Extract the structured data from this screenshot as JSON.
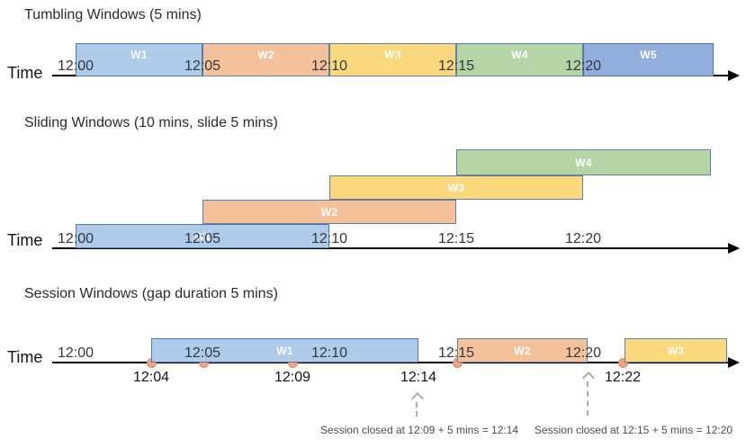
{
  "figure": {
    "background": "#FFFFFF",
    "axis_label": "Time",
    "tick_labels": [
      "12:00",
      "12:05",
      "12:10",
      "12:15",
      "12:20"
    ],
    "colors": {
      "axis": "#000000",
      "tick_text": "#33373D",
      "window_label_text": "#FFFFFF",
      "event_dot_fill": "#F0A381",
      "event_dot_border": "#E2885F",
      "dashed_arrow": "#ABABAB",
      "annotation_text": "#4D4D4D"
    },
    "sections": [
      {
        "title": "Tumbling Windows (5 mins)",
        "windows": [
          {
            "label": "W1",
            "start": "12:00",
            "end": "12:05",
            "fill": "#AECBEA",
            "border": "#4E79AE"
          },
          {
            "label": "W2",
            "start": "12:05",
            "end": "12:10",
            "fill": "#F5C19B",
            "border": "#61809F"
          },
          {
            "label": "W3",
            "start": "12:10",
            "end": "12:15",
            "fill": "#FCD87C",
            "border": "#61809F"
          },
          {
            "label": "W4",
            "start": "12:15",
            "end": "12:20",
            "fill": "#B6D5A7",
            "border": "#61809F"
          },
          {
            "label": "W5",
            "start": "12:20",
            "end": "12:25",
            "fill": "#92AEDD",
            "border": "#4C6FB0"
          }
        ]
      },
      {
        "title": "Sliding Windows (10 mins, slide 5 mins)",
        "windows": [
          {
            "label": "W1",
            "start": "12:00",
            "end": "12:10",
            "fill": "#AECBEA",
            "border": "#4E79AE"
          },
          {
            "label": "W2",
            "start": "12:05",
            "end": "12:15",
            "fill": "#F5C19B",
            "border": "#61809F"
          },
          {
            "label": "W3",
            "start": "12:10",
            "end": "12:20",
            "fill": "#FCD87C",
            "border": "#61809F"
          },
          {
            "label": "W4",
            "start": "12:15",
            "end": "12:25",
            "fill": "#B6D5A7",
            "border": "#61809F"
          }
        ]
      },
      {
        "title": "Session Windows (gap duration 5 mins)",
        "windows": [
          {
            "label": "W1",
            "start": "12:04",
            "end": "12:14",
            "fill": "#AECBEA",
            "border": "#4E79AE"
          },
          {
            "label": "W2",
            "start": "12:15",
            "end": "12:20",
            "fill": "#F5C19B",
            "border": "#61809F"
          },
          {
            "label": "W3",
            "start": "12:22",
            "end": "",
            "fill": "#FCD87C",
            "border": "#61809F"
          }
        ],
        "event_dot_times_approx": [
          "12:04",
          "12:05",
          "12:09",
          "12:15",
          "12:22"
        ],
        "below_axis_labels": [
          "12:04",
          "12:09",
          "12:14",
          "12:22"
        ],
        "annotations": [
          "Session closed at 12:09 + 5 mins = 12:14",
          "Session closed at 12:15 + 5 mins = 12:20"
        ]
      }
    ]
  }
}
